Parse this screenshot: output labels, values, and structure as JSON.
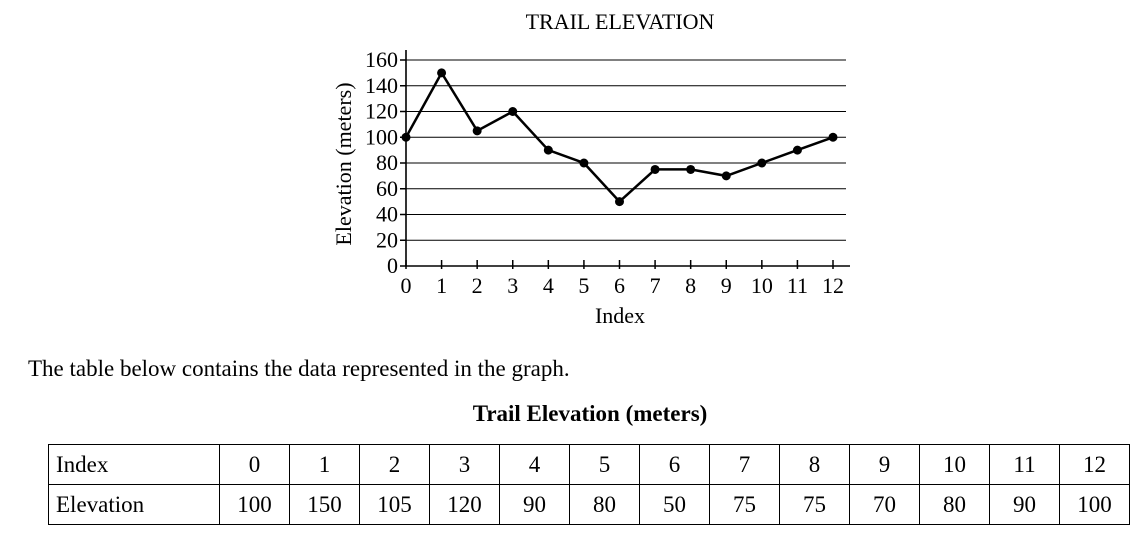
{
  "chart_data": {
    "type": "line",
    "title": "TRAIL ELEVATION",
    "xlabel": "Index",
    "ylabel": "Elevation (meters)",
    "x": [
      0,
      1,
      2,
      3,
      4,
      5,
      6,
      7,
      8,
      9,
      10,
      11,
      12
    ],
    "values": [
      100,
      150,
      105,
      120,
      90,
      80,
      50,
      75,
      75,
      70,
      80,
      90,
      100
    ],
    "xlim": [
      0,
      12
    ],
    "ylim": [
      0,
      160
    ],
    "y_ticks": [
      0,
      20,
      40,
      60,
      80,
      100,
      120,
      140,
      160
    ],
    "x_ticks": [
      0,
      1,
      2,
      3,
      4,
      5,
      6,
      7,
      8,
      9,
      10,
      11,
      12
    ],
    "grid": "horizontal",
    "marker": "filled-circle",
    "line_color": "#000000"
  },
  "intro_text": "The table below contains the data represented in the graph.",
  "table": {
    "title": "Trail Elevation (meters)",
    "row_labels": [
      "Index",
      "Elevation"
    ],
    "index": [
      "0",
      "1",
      "2",
      "3",
      "4",
      "5",
      "6",
      "7",
      "8",
      "9",
      "10",
      "11",
      "12"
    ],
    "elevation": [
      "100",
      "150",
      "105",
      "120",
      "90",
      "80",
      "50",
      "75",
      "75",
      "70",
      "80",
      "90",
      "100"
    ]
  }
}
